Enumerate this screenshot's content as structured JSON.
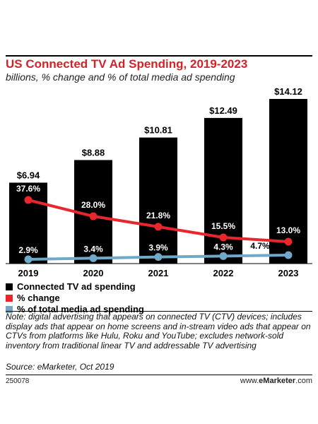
{
  "header": {
    "title": "US Connected TV Ad Spending, 2019-2023",
    "subtitle": "billions, % change and % of total media ad spending"
  },
  "chart_data": {
    "type": "bar",
    "categories": [
      "2019",
      "2020",
      "2021",
      "2022",
      "2023"
    ],
    "series": [
      {
        "name": "Connected TV ad spending",
        "type": "bar",
        "values": [
          6.94,
          8.88,
          10.81,
          12.49,
          14.12
        ],
        "labels": [
          "$6.94",
          "$8.88",
          "$10.81",
          "$12.49",
          "$14.12"
        ],
        "color": "#000000"
      },
      {
        "name": "% change",
        "type": "line",
        "values": [
          37.6,
          28.0,
          21.8,
          15.5,
          13.0
        ],
        "labels": [
          "37.6%",
          "28.0%",
          "21.8%",
          "15.5%",
          "13.0%"
        ],
        "color": "#e8262c"
      },
      {
        "name": "% of total media ad spending",
        "type": "line",
        "values": [
          2.9,
          3.4,
          3.9,
          4.3,
          4.7
        ],
        "labels": [
          "2.9%",
          "3.4%",
          "3.9%",
          "4.3%",
          "4.7%"
        ],
        "color": "#6fa8c8"
      }
    ],
    "grid": false,
    "legend_position": "bottom-left"
  },
  "footer": {
    "note": "Note: digital advertising that appears on connected TV (CTV) devices; includes display ads that appear on home screens and in-stream video ads that appear on CTVs from platforms like Hulu, Roku and YouTube; excludes network-sold inventory from traditional linear TV and addressable TV advertising",
    "source": "Source: eMarketer, Oct 2019",
    "chart_id": "250078",
    "brand_prefix": "www.",
    "brand_name": "eMarketer",
    "brand_suffix": ".com"
  }
}
